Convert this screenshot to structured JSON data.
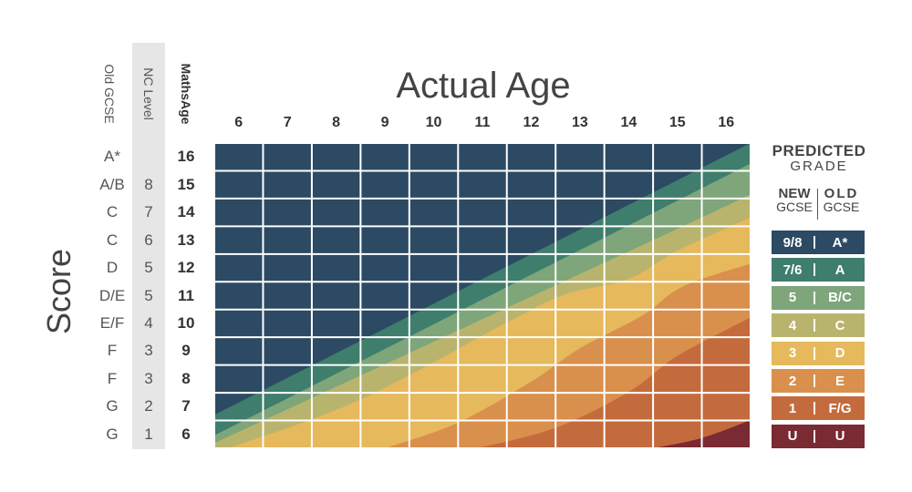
{
  "chart_data": {
    "type": "heatmap",
    "title": "Actual Age",
    "ylabel": "Score",
    "x_ticks": [
      "6",
      "7",
      "8",
      "9",
      "10",
      "11",
      "12",
      "13",
      "14",
      "15",
      "16"
    ],
    "y_ticks_maths_age": [
      "16",
      "15",
      "14",
      "13",
      "12",
      "11",
      "10",
      "9",
      "8",
      "7",
      "6"
    ],
    "columns": {
      "old_gcse_header": "Old GCSE",
      "nc_level_header": "NC Level",
      "maths_age_header": "MathsAge",
      "old_gcse": [
        "A*",
        "A/B",
        "C",
        "C",
        "D",
        "D/E",
        "E/F",
        "F",
        "F",
        "G",
        "G"
      ],
      "nc_level": [
        "",
        "8",
        "7",
        "6",
        "5",
        "5",
        "4",
        "3",
        "3",
        "2",
        "1"
      ]
    },
    "bands": [
      {
        "grade_new": "9/8",
        "grade_old": "A*",
        "color": "#2c4a63"
      },
      {
        "grade_new": "7/6",
        "grade_old": "A",
        "color": "#3f7d6c"
      },
      {
        "grade_new": "5",
        "grade_old": "B/C",
        "color": "#7ea67a"
      },
      {
        "grade_new": "4",
        "grade_old": "C",
        "color": "#b9b46d"
      },
      {
        "grade_new": "3",
        "grade_old": "D",
        "color": "#e6b95d"
      },
      {
        "grade_new": "2",
        "grade_old": "E",
        "color": "#d9904d"
      },
      {
        "grade_new": "1",
        "grade_old": "F/G",
        "color": "#c46b3e"
      },
      {
        "grade_new": "U",
        "grade_old": "U",
        "color": "#7a2a32"
      }
    ],
    "band_boundaries": [
      {
        "name": "A*/A",
        "points": [
          [
            6,
            5.9
          ],
          [
            17,
            16.5
          ]
        ]
      },
      {
        "name": "A/B",
        "points": [
          [
            6,
            5.1
          ],
          [
            17,
            15.7
          ]
        ]
      },
      {
        "name": "B/C",
        "points": [
          [
            6,
            4.8
          ],
          [
            16,
            13.6
          ],
          [
            17,
            14.6
          ]
        ]
      },
      {
        "name": "C/D",
        "points": [
          [
            6.3,
            4.6
          ],
          [
            9,
            6.5
          ],
          [
            12,
            9.5
          ],
          [
            13.2,
            10.6
          ],
          [
            14.5,
            11.2
          ],
          [
            15.5,
            12.3
          ],
          [
            17,
            13.6
          ]
        ]
      },
      {
        "name": "D/E",
        "points": [
          [
            9.5,
            4.6
          ],
          [
            11,
            5.6
          ],
          [
            12.5,
            7.2
          ],
          [
            13.5,
            8.5
          ],
          [
            14.8,
            9.8
          ],
          [
            15.6,
            10.9
          ],
          [
            17,
            11.8
          ]
        ]
      },
      {
        "name": "E/F",
        "points": [
          [
            11.4,
            4.6
          ],
          [
            13,
            5.4
          ],
          [
            14.5,
            6.8
          ],
          [
            15.5,
            8.2
          ],
          [
            17,
            9.7
          ]
        ]
      },
      {
        "name": "F/U",
        "points": [
          [
            15.0,
            4.6
          ],
          [
            16.0,
            5.0
          ],
          [
            17,
            5.7
          ]
        ]
      }
    ]
  },
  "legend": {
    "title_line1": "PREDICTED",
    "title_line2": "GRADE",
    "new_label_line1": "NEW",
    "new_label_line2": "GCSE",
    "old_label_line1": "OLD",
    "old_label_line2": "GCSE"
  }
}
